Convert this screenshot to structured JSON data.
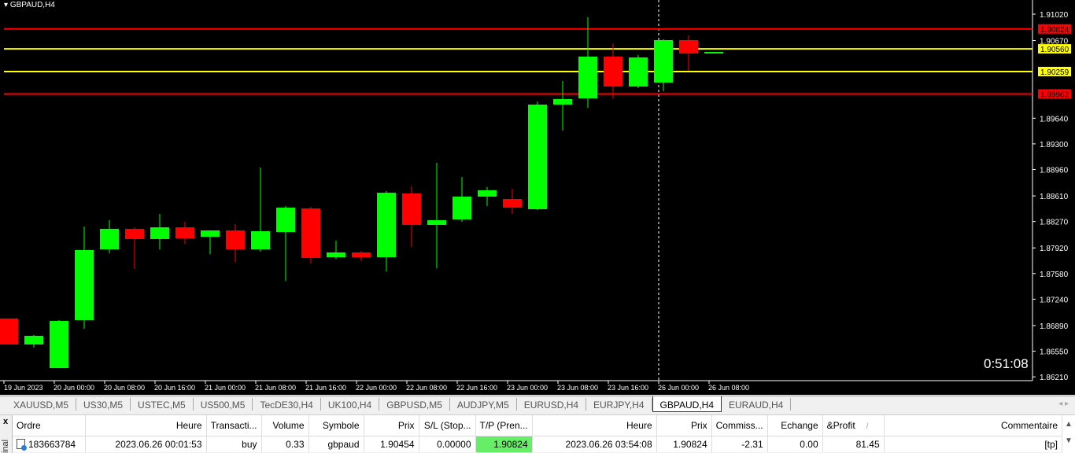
{
  "chart": {
    "symbol_label": "GBPAUD,H4",
    "timer": "0:51:08",
    "colors": {
      "bull": "#00ff00",
      "bear": "#ff0000",
      "background": "#000000",
      "axis": "#ffffff",
      "line_red": "#ff0000",
      "line_yellow": "#ffff00"
    },
    "price_ticks": [
      "1.91020",
      "1.90670",
      "1.89640",
      "1.89300",
      "1.88960",
      "1.88610",
      "1.88270",
      "1.87920",
      "1.87580",
      "1.87240",
      "1.86890",
      "1.86550",
      "1.86210"
    ],
    "time_ticks": [
      "19 Jun 2023",
      "20 Jun 00:00",
      "20 Jun 08:00",
      "20 Jun 16:00",
      "21 Jun 00:00",
      "21 Jun 08:00",
      "21 Jun 16:00",
      "22 Jun 00:00",
      "22 Jun 08:00",
      "22 Jun 16:00",
      "23 Jun 00:00",
      "23 Jun 08:00",
      "23 Jun 16:00",
      "26 Jun 00:00",
      "26 Jun 08:00"
    ],
    "levels": [
      {
        "price": "1.90824",
        "color": "#ff0000"
      },
      {
        "price": "1.90560",
        "color": "#ffff00"
      },
      {
        "price": "1.90259",
        "color": "#ffff00"
      },
      {
        "price": "1.89962",
        "color": "#ff0000"
      }
    ],
    "candles": [
      {
        "o": 1.86984,
        "h": 1.86984,
        "l": 1.86639,
        "c": 1.86639
      },
      {
        "o": 1.86639,
        "h": 1.86765,
        "l": 1.86598,
        "c": 1.86754
      },
      {
        "o": 1.86326,
        "h": 1.86963,
        "l": 1.86326,
        "c": 1.86952
      },
      {
        "o": 1.86963,
        "h": 1.88204,
        "l": 1.86848,
        "c": 1.87891
      },
      {
        "o": 1.87901,
        "h": 1.88287,
        "l": 1.87849,
        "c": 1.88173
      },
      {
        "o": 1.88173,
        "h": 1.88193,
        "l": 1.87641,
        "c": 1.88037
      },
      {
        "o": 1.88037,
        "h": 1.88371,
        "l": 1.87901,
        "c": 1.88193
      },
      {
        "o": 1.88193,
        "h": 1.88266,
        "l": 1.87974,
        "c": 1.88047
      },
      {
        "o": 1.88068,
        "h": 1.88152,
        "l": 1.87839,
        "c": 1.88152
      },
      {
        "o": 1.88152,
        "h": 1.88235,
        "l": 1.87735,
        "c": 1.87901
      },
      {
        "o": 1.87901,
        "h": 1.88986,
        "l": 1.8787,
        "c": 1.88141
      },
      {
        "o": 1.88131,
        "h": 1.88475,
        "l": 1.87484,
        "c": 1.88454
      },
      {
        "o": 1.88444,
        "h": 1.88465,
        "l": 1.87714,
        "c": 1.87787
      },
      {
        "o": 1.87797,
        "h": 1.88016,
        "l": 1.87776,
        "c": 1.8786
      },
      {
        "o": 1.8786,
        "h": 1.87881,
        "l": 1.87745,
        "c": 1.87797
      },
      {
        "o": 1.87797,
        "h": 1.88673,
        "l": 1.87609,
        "c": 1.88652
      },
      {
        "o": 1.88642,
        "h": 1.88736,
        "l": 1.87933,
        "c": 1.88225
      },
      {
        "o": 1.88225,
        "h": 1.89049,
        "l": 1.87651,
        "c": 1.88287
      },
      {
        "o": 1.88298,
        "h": 1.88861,
        "l": 1.88266,
        "c": 1.886
      },
      {
        "o": 1.886,
        "h": 1.88725,
        "l": 1.88475,
        "c": 1.88684
      },
      {
        "o": 1.88569,
        "h": 1.88705,
        "l": 1.88371,
        "c": 1.88454
      },
      {
        "o": 1.88433,
        "h": 1.89862,
        "l": 1.88423,
        "c": 1.89821
      },
      {
        "o": 1.89821,
        "h": 1.90133,
        "l": 1.89476,
        "c": 1.89894
      },
      {
        "o": 1.89904,
        "h": 1.90978,
        "l": 1.89779,
        "c": 1.90457
      },
      {
        "o": 1.90457,
        "h": 1.90634,
        "l": 1.89904,
        "c": 1.9006
      },
      {
        "o": 1.9006,
        "h": 1.90478,
        "l": 1.9004,
        "c": 1.90446
      },
      {
        "o": 1.90113,
        "h": 1.90686,
        "l": 1.89998,
        "c": 1.90676
      },
      {
        "o": 1.90676,
        "h": 1.90738,
        "l": 1.90269,
        "c": 1.90498
      },
      {
        "o": 1.90498,
        "h": 1.90519,
        "l": 1.90498,
        "c": 1.90519
      }
    ]
  },
  "tabs": [
    {
      "label": "XAUUSD,M5"
    },
    {
      "label": "US30,M5"
    },
    {
      "label": "USTEC,M5"
    },
    {
      "label": "US500,M5"
    },
    {
      "label": "TecDE30,H4"
    },
    {
      "label": "UK100,H4"
    },
    {
      "label": "GBPUSD,M5"
    },
    {
      "label": "AUDJPY,M5"
    },
    {
      "label": "EURUSD,H4"
    },
    {
      "label": "EURJPY,H4"
    },
    {
      "label": "GBPAUD,H4",
      "active": true
    },
    {
      "label": "EURAUD,H4"
    }
  ],
  "terminal": {
    "side_label": "inal",
    "close": "x",
    "columns": [
      "Ordre",
      "Heure",
      "Transacti...",
      "Volume",
      "Symbole",
      "Prix",
      "S/L (Stop...",
      "T/P (Pren...",
      "Heure",
      "Prix",
      "Commiss...",
      "Echange",
      "&Profit",
      "Commentaire"
    ],
    "sort_marker": "/",
    "row": {
      "ordre": "183663784",
      "heure": "2023.06.26 00:01:53",
      "transaction": "buy",
      "volume": "0.33",
      "symbole": "gbpaud",
      "prix": "1.90454",
      "sl": "0.00000",
      "tp": "1.90824",
      "heure_close": "2023.06.26 03:54:08",
      "prix_close": "1.90824",
      "commission": "-2.31",
      "echange": "0.00",
      "profit": "81.45",
      "commentaire": "[tp]"
    }
  }
}
